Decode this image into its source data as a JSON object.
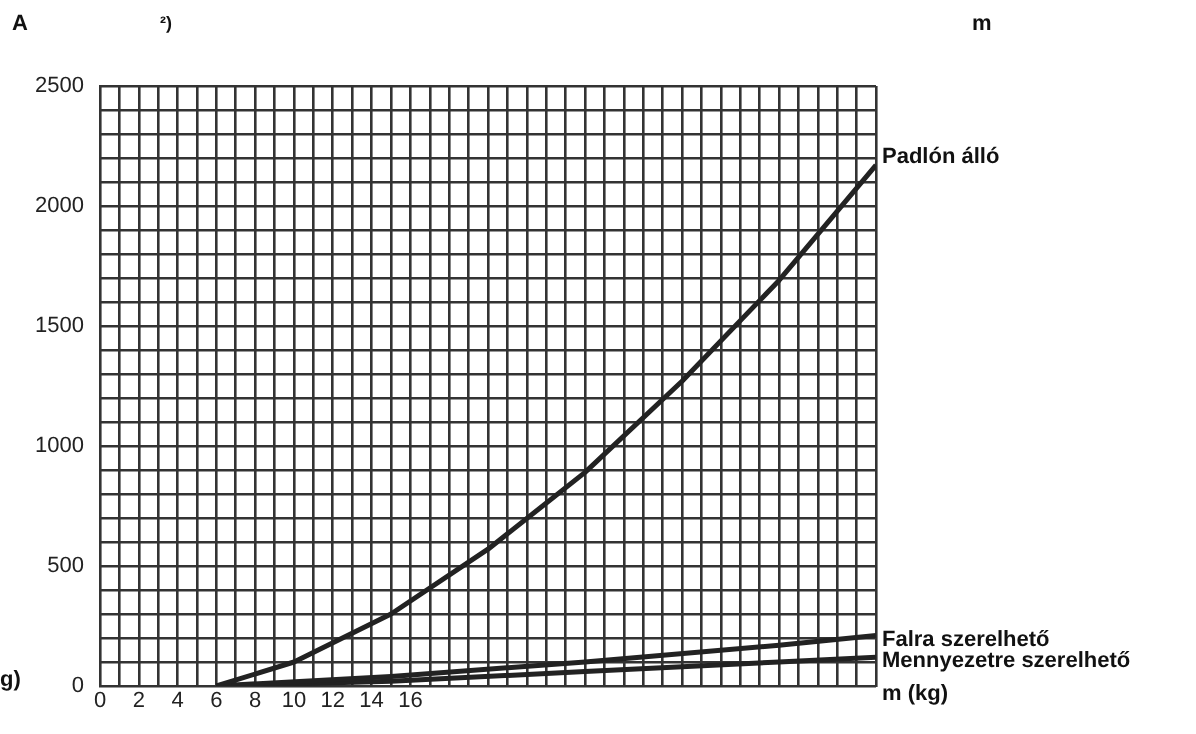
{
  "chart_data": {
    "type": "line",
    "ylabel": "A",
    "xlabel": "m (kg)",
    "annotations": [
      "²)",
      "m",
      "g)"
    ],
    "xlim": [
      0,
      40
    ],
    "xticks": [
      0,
      2,
      4,
      6,
      8,
      10,
      12,
      14,
      16,
      {
        "value": 18,
        "label": null
      },
      {
        "value": 20,
        "label": null
      },
      {
        "value": 22,
        "label": null
      },
      {
        "value": 24,
        "label": null
      },
      {
        "value": 26,
        "label": null
      },
      {
        "value": 28,
        "label": null
      },
      {
        "value": 30,
        "label": null
      },
      {
        "value": 32,
        "label": null
      },
      {
        "value": 34,
        "label": null
      },
      {
        "value": 36,
        "label": null
      },
      {
        "value": 38,
        "label": null
      },
      {
        "value": 40,
        "label": null
      },
      {
        "value": 1,
        "label": null
      },
      {
        "value": 3,
        "label": null
      },
      {
        "value": 5,
        "label": null
      },
      {
        "value": 7,
        "label": null
      },
      {
        "value": 9,
        "label": null
      },
      {
        "value": 11,
        "label": null
      },
      {
        "value": 13,
        "label": null
      },
      {
        "value": 15,
        "label": null
      },
      {
        "value": 17,
        "label": null
      },
      {
        "value": 19,
        "label": null
      },
      {
        "value": 21,
        "label": null
      },
      {
        "value": 23,
        "label": null
      },
      {
        "value": 25,
        "label": null
      },
      {
        "value": 27,
        "label": null
      },
      {
        "value": 29,
        "label": null
      },
      {
        "value": 31,
        "label": null
      },
      {
        "value": 33,
        "label": null
      },
      {
        "value": 35,
        "label": null
      },
      {
        "value": 37,
        "label": null
      },
      {
        "value": 39,
        "label": null
      }
    ],
    "ylim": [
      0,
      2500
    ],
    "yticks": [
      0,
      {
        "value": 100,
        "label": null
      },
      {
        "value": 200,
        "label": null
      },
      {
        "value": 300,
        "label": null
      },
      {
        "value": 400,
        "label": null
      },
      500,
      {
        "value": 600,
        "label": null
      },
      {
        "value": 700,
        "label": null
      },
      {
        "value": 800,
        "label": null
      },
      {
        "value": 900,
        "label": null
      },
      1000,
      {
        "value": 1100,
        "label": null
      },
      {
        "value": 1200,
        "label": null
      },
      {
        "value": 1300,
        "label": null
      },
      {
        "value": 1400,
        "label": null
      },
      1500,
      {
        "value": 1600,
        "label": null
      },
      {
        "value": 1700,
        "label": null
      },
      {
        "value": 1800,
        "label": null
      },
      {
        "value": 1900,
        "label": null
      },
      2000,
      {
        "value": 2100,
        "label": null
      },
      {
        "value": 2200,
        "label": null
      },
      {
        "value": 2300,
        "label": null
      },
      {
        "value": 2400,
        "label": null
      },
      2500
    ],
    "grid": true,
    "legend": false,
    "marker": "none",
    "line_style": "solid",
    "series": [
      {
        "name": "Padlón álló",
        "color": "#222222",
        "x": [
          6,
          10,
          15,
          20,
          25,
          30,
          35,
          40
        ],
        "values": [
          0,
          100,
          300,
          570,
          890,
          1270,
          1690,
          2170
        ]
      },
      {
        "name": "Falra szerelhető",
        "color": "#222222",
        "x": [
          6,
          15,
          25,
          35,
          40
        ],
        "values": [
          0,
          40,
          100,
          170,
          210
        ]
      },
      {
        "name": "Mennyezetre szerelhető",
        "color": "#222222",
        "x": [
          6,
          15,
          25,
          35,
          40
        ],
        "values": [
          0,
          20,
          60,
          100,
          120
        ]
      }
    ]
  }
}
